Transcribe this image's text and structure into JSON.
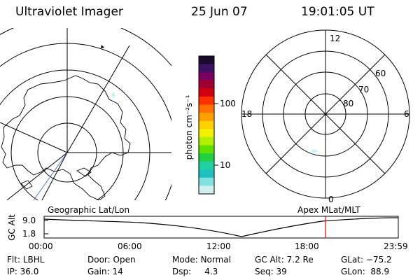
{
  "header": {
    "instrument": "Ultraviolet Imager",
    "date": "25 Jun 07",
    "time": "19:01:05 UT"
  },
  "colorbar": {
    "unit_label": "photon cm⁻²s⁻¹",
    "tick_labels": [
      "100",
      "10"
    ],
    "colors": [
      "#1a0a2e",
      "#3a1060",
      "#7a0060",
      "#a00030",
      "#d00010",
      "#ff3000",
      "#ff7000",
      "#ffa000",
      "#ffd000",
      "#f0f000",
      "#b0f000",
      "#60e000",
      "#20d040",
      "#20d0a0",
      "#20c0c0",
      "#80e0e0",
      "#d0f0f0"
    ]
  },
  "geo_map": {
    "label": "Geographic Lat/Lon"
  },
  "polar_plot": {
    "label": "Apex MLat/MLT",
    "mlt_labels": {
      "top": "12",
      "left": "18",
      "right": "6",
      "bottom": "0"
    },
    "lat_labels": [
      "60",
      "70",
      "80"
    ]
  },
  "timeline": {
    "y_title": "GC Alt",
    "y_ticks": [
      "9.0",
      "1.8"
    ],
    "x_ticks": [
      "00:00",
      "06:00",
      "12:00",
      "18:00",
      "23:59"
    ],
    "marker_color": "#e00000"
  },
  "status": {
    "row1": [
      {
        "label": "Flt:",
        "value": "LBHL"
      },
      {
        "label": "Door:",
        "value": "Open"
      },
      {
        "label": "Mode:",
        "value": "Normal"
      },
      {
        "label": "GC Alt:",
        "value": "7.2 Re"
      },
      {
        "label": "GLat:",
        "value": "−75.2"
      }
    ],
    "row2": [
      {
        "label": "IP:",
        "value": "36.0"
      },
      {
        "label": "Gain:",
        "value": "14"
      },
      {
        "label": "Dsp:",
        "value": "4.3"
      },
      {
        "label": "Seq:",
        "value": "39"
      },
      {
        "label": "GLon:",
        "value": "88.9"
      }
    ]
  }
}
